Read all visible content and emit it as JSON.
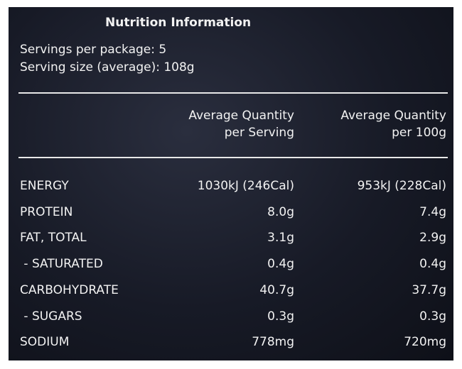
{
  "title": "Nutrition Information",
  "servings": [
    "Servings per package: 5",
    "Serving size (average): 108g"
  ],
  "table": {
    "header": [
      [
        "Average Quantity",
        "per Serving"
      ],
      [
        "Average Quantity",
        "per 100g"
      ]
    ],
    "rows": [
      [
        "ENERGY",
        "1030kJ (246Cal)",
        "953kJ (228Cal)"
      ],
      [
        "PROTEIN",
        "8.0g",
        "7.4g"
      ],
      [
        "FAT, TOTAL",
        "3.1g",
        "2.9g"
      ],
      [
        " - SATURATED",
        "0.4g",
        "0.4g"
      ],
      [
        "CARBOHYDRATE",
        "40.7g",
        "37.7g"
      ],
      [
        " - SUGARS",
        "0.3g",
        "0.3g"
      ],
      [
        "SODIUM",
        "778mg",
        "720mg"
      ]
    ]
  }
}
